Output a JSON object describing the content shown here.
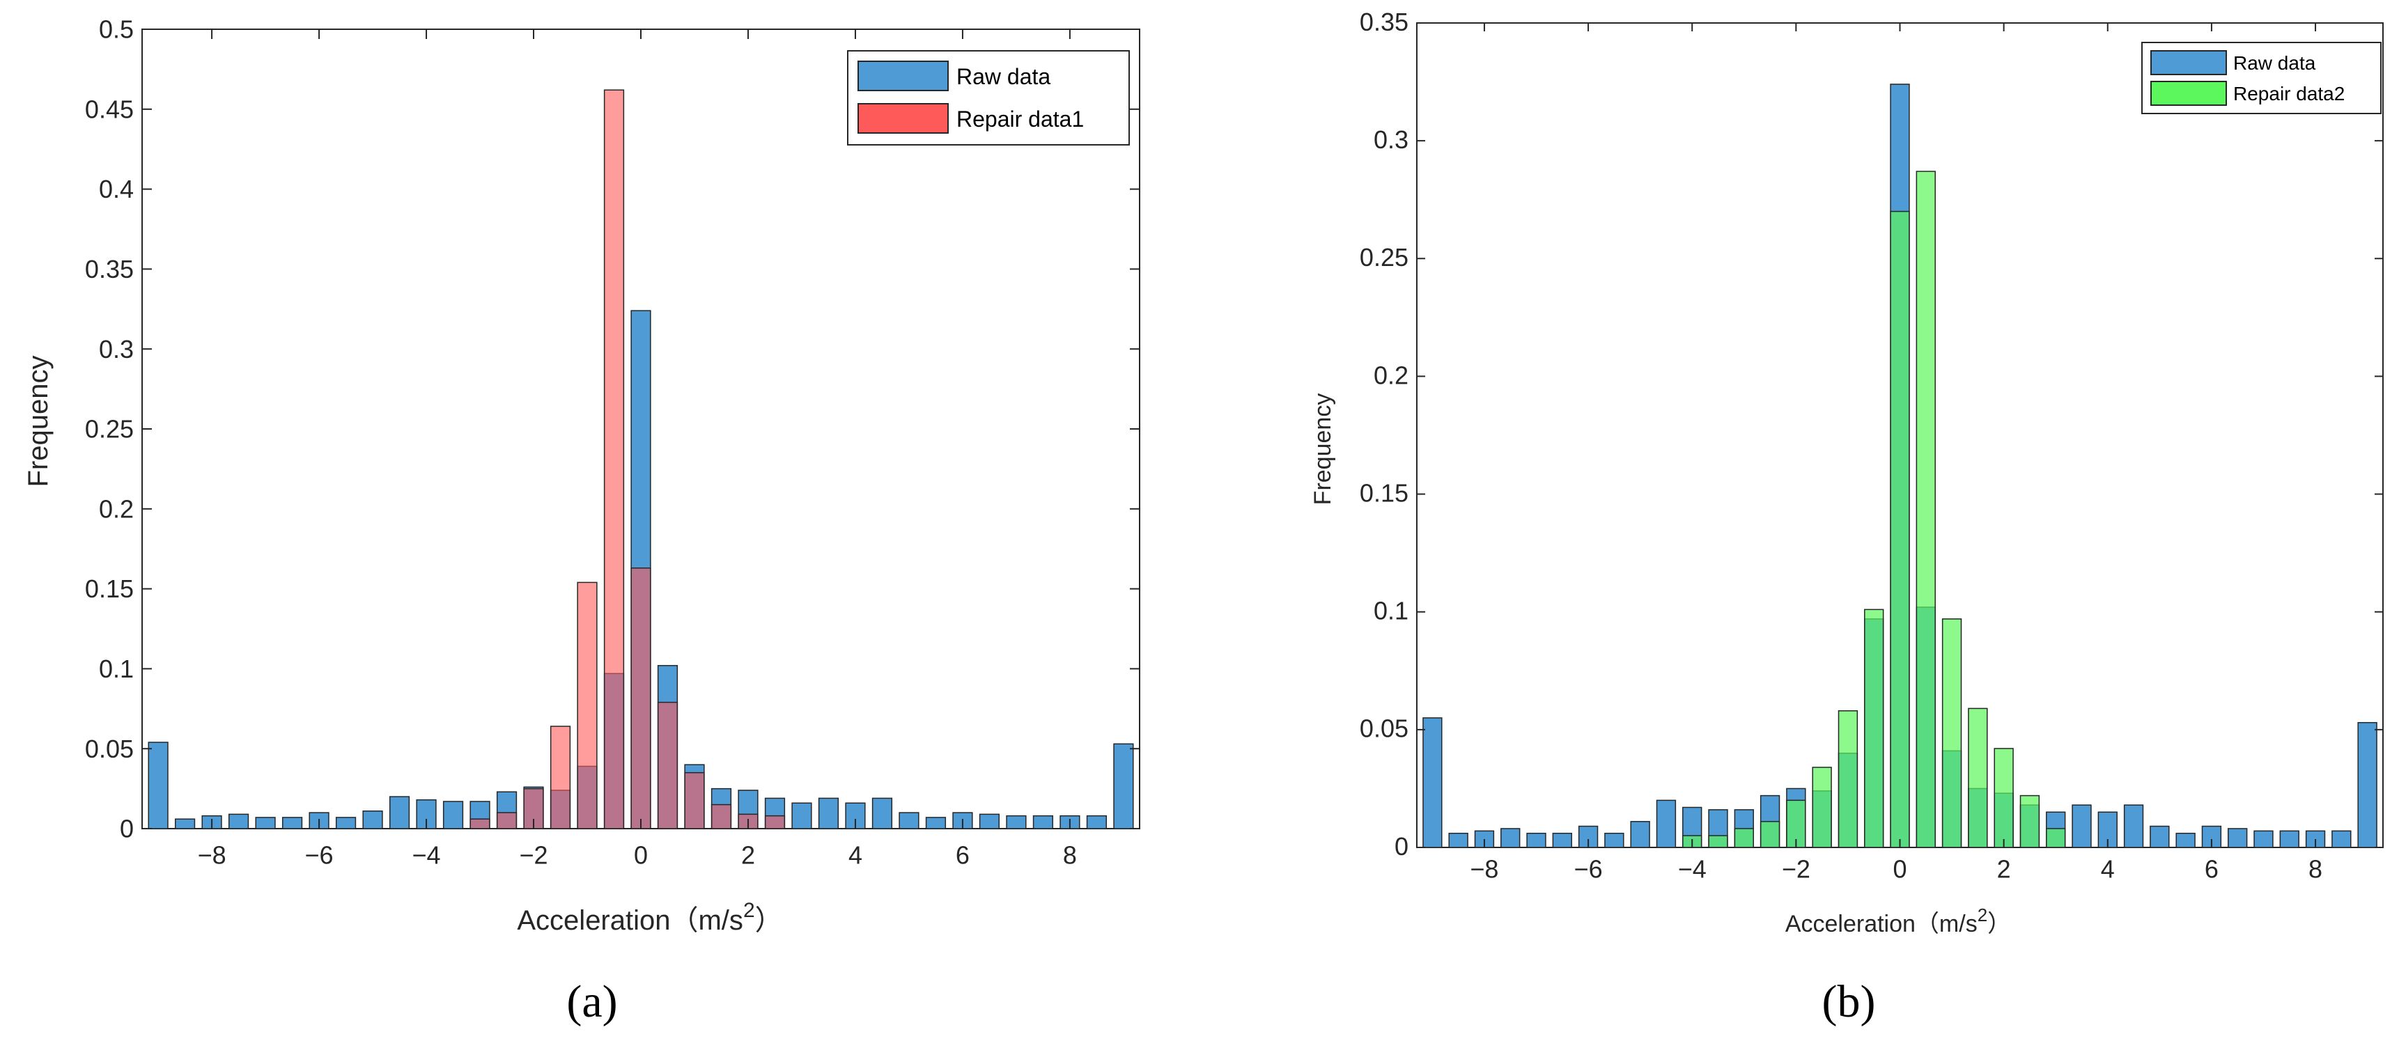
{
  "chart_data": [
    {
      "type": "bar",
      "panel_caption": "(a)",
      "xlabel": "Acceleration（m/s",
      "xlabel_sup": "2",
      "xlabel_close": "）",
      "ylabel": "Frequency",
      "xlim": [
        -9.3,
        9.3
      ],
      "ylim": [
        0,
        0.5
      ],
      "xticks": [
        -8,
        -6,
        -4,
        -2,
        0,
        2,
        4,
        6,
        8
      ],
      "xtick_labels": [
        "−8",
        "−6",
        "−4",
        "−2",
        "0",
        "2",
        "4",
        "6",
        "8"
      ],
      "yticks": [
        0,
        0.05,
        0.1,
        0.15,
        0.2,
        0.25,
        0.3,
        0.35,
        0.4,
        0.45,
        0.5
      ],
      "ytick_labels": [
        "0",
        "0.05",
        "0.1",
        "0.15",
        "0.2",
        "0.25",
        "0.3",
        "0.35",
        "0.4",
        "0.45",
        "0.5"
      ],
      "bin_width": 0.5,
      "bar_width_fraction": 0.72,
      "x": [
        -9.0,
        -8.5,
        -8.0,
        -7.5,
        -7.0,
        -6.5,
        -6.0,
        -5.5,
        -5.0,
        -4.5,
        -4.0,
        -3.5,
        -3.0,
        -2.5,
        -2.0,
        -1.5,
        -1.0,
        -0.5,
        0.0,
        0.5,
        1.0,
        1.5,
        2.0,
        2.5,
        3.0,
        3.5,
        4.0,
        4.5,
        5.0,
        5.5,
        6.0,
        6.5,
        7.0,
        7.5,
        8.0,
        8.5,
        9.0
      ],
      "series": [
        {
          "name": "Raw data",
          "color": "#4f9bd6",
          "values": [
            0.054,
            0.006,
            0.008,
            0.009,
            0.007,
            0.007,
            0.01,
            0.007,
            0.011,
            0.02,
            0.018,
            0.017,
            0.017,
            0.023,
            0.026,
            0.024,
            0.039,
            0.097,
            0.324,
            0.102,
            0.04,
            0.025,
            0.024,
            0.019,
            0.016,
            0.019,
            0.016,
            0.019,
            0.01,
            0.007,
            0.01,
            0.009,
            0.008,
            0.008,
            0.008,
            0.008,
            0.053
          ]
        },
        {
          "name": "Repair data1",
          "color": "#ff5a5a",
          "values": [
            0,
            0,
            0,
            0,
            0,
            0,
            0,
            0,
            0,
            0,
            0,
            0,
            0.006,
            0.01,
            0.025,
            0.064,
            0.154,
            0.462,
            0.163,
            0.079,
            0.035,
            0.015,
            0.009,
            0.008,
            0,
            0,
            0,
            0,
            0,
            0,
            0,
            0,
            0,
            0,
            0,
            0,
            0
          ]
        }
      ],
      "legend_position": "top-right",
      "grid": false
    },
    {
      "type": "bar",
      "panel_caption": "(b)",
      "xlabel": "Acceleration（m/s",
      "xlabel_sup": "2",
      "xlabel_close": "）",
      "ylabel": "Frequency",
      "xlim": [
        -9.3,
        9.3
      ],
      "ylim": [
        0,
        0.35
      ],
      "xticks": [
        -8,
        -6,
        -4,
        -2,
        0,
        2,
        4,
        6,
        8
      ],
      "xtick_labels": [
        "−8",
        "−6",
        "−4",
        "−2",
        "0",
        "2",
        "4",
        "6",
        "8"
      ],
      "yticks": [
        0,
        0.05,
        0.1,
        0.15,
        0.2,
        0.25,
        0.3,
        0.35
      ],
      "ytick_labels": [
        "0",
        "0.05",
        "0.1",
        "0.15",
        "0.2",
        "0.25",
        "0.3",
        "0.35"
      ],
      "bin_width": 0.5,
      "bar_width_fraction": 0.72,
      "x": [
        -9.0,
        -8.5,
        -8.0,
        -7.5,
        -7.0,
        -6.5,
        -6.0,
        -5.5,
        -5.0,
        -4.5,
        -4.0,
        -3.5,
        -3.0,
        -2.5,
        -2.0,
        -1.5,
        -1.0,
        -0.5,
        0.0,
        0.5,
        1.0,
        1.5,
        2.0,
        2.5,
        3.0,
        3.5,
        4.0,
        4.5,
        5.0,
        5.5,
        6.0,
        6.5,
        7.0,
        7.5,
        8.0,
        8.5,
        9.0
      ],
      "series": [
        {
          "name": "Raw data",
          "color": "#4f9bd6",
          "values": [
            0.055,
            0.006,
            0.007,
            0.008,
            0.006,
            0.006,
            0.009,
            0.006,
            0.011,
            0.02,
            0.017,
            0.016,
            0.016,
            0.022,
            0.025,
            0.024,
            0.04,
            0.097,
            0.324,
            0.102,
            0.041,
            0.025,
            0.023,
            0.018,
            0.015,
            0.018,
            0.015,
            0.018,
            0.009,
            0.006,
            0.009,
            0.008,
            0.007,
            0.007,
            0.007,
            0.007,
            0.053
          ]
        },
        {
          "name": "Repair data2",
          "color": "#5cf75c",
          "values": [
            0,
            0,
            0,
            0,
            0,
            0,
            0,
            0,
            0,
            0,
            0.005,
            0.005,
            0.008,
            0.011,
            0.02,
            0.034,
            0.058,
            0.101,
            0.27,
            0.287,
            0.097,
            0.059,
            0.042,
            0.022,
            0.008,
            0,
            0,
            0,
            0,
            0,
            0,
            0,
            0,
            0,
            0,
            0,
            0
          ]
        }
      ],
      "legend_position": "top-right",
      "grid": false
    }
  ]
}
